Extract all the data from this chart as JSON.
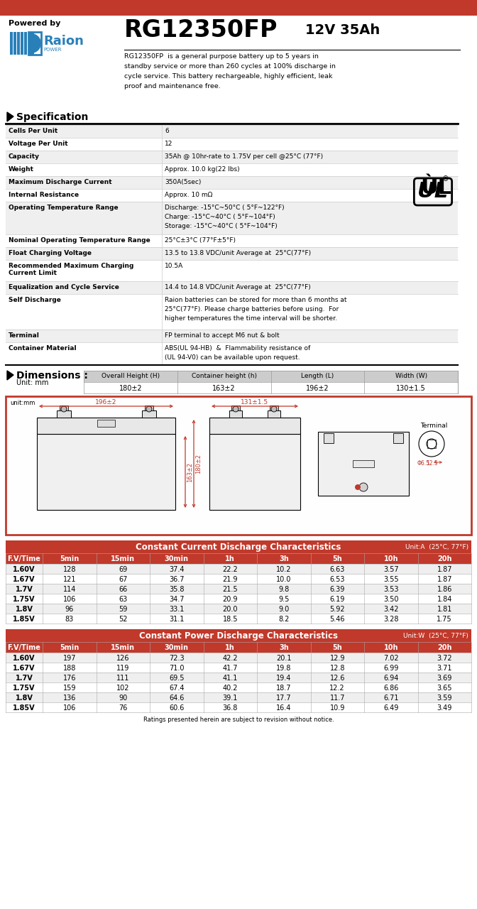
{
  "title_model": "RG12350FP",
  "title_spec": "12V 35Ah",
  "powered_by": "Powered by",
  "description": "RG12350FP  is a general purpose battery up to 5 years in\nstandby service or more than 260 cycles at 100% discharge in\ncycle service. This battery rechargeable, highly efficient, leak\nproof and maintenance free.",
  "section_spec": "Specification",
  "spec_rows": [
    [
      "Cells Per Unit",
      "6"
    ],
    [
      "Voltage Per Unit",
      "12"
    ],
    [
      "Capacity",
      "35Ah @ 10hr-rate to 1.75V per cell @25°C (77°F)"
    ],
    [
      "Weight",
      "Approx. 10.0 kg(22 lbs)"
    ],
    [
      "Maximum Discharge Current",
      "350A(5sec)"
    ],
    [
      "Internal Resistance",
      "Approx. 10 mΩ"
    ],
    [
      "Operating Temperature Range",
      "Discharge: -15°C~50°C ( 5°F~122°F)\nCharge: -15°C~40°C ( 5°F~104°F)\nStorage: -15°C~40°C ( 5°F~104°F)"
    ],
    [
      "Nominal Operating Temperature Range",
      "25°C±3°C (77°F±5°F)"
    ],
    [
      "Float Charging Voltage",
      "13.5 to 13.8 VDC/unit Average at  25°C(77°F)"
    ],
    [
      "Recommended Maximum Charging\nCurrent Limit",
      "10.5A"
    ],
    [
      "Equalization and Cycle Service",
      "14.4 to 14.8 VDC/unit Average at  25°C(77°F)"
    ],
    [
      "Self Discharge",
      "Raion batteries can be stored for more than 6 months at\n25°C(77°F). Please charge batteries before using.  For\nhigher temperatures the time interval will be shorter."
    ],
    [
      "Terminal",
      "FP terminal to accept M6 nut & bolt"
    ],
    [
      "Container Material",
      "ABS(UL 94-HB)  &  Flammability resistance of\n(UL 94-V0) can be available upon request."
    ]
  ],
  "spec_row_heights": [
    18,
    18,
    18,
    18,
    18,
    18,
    46,
    18,
    18,
    30,
    18,
    50,
    18,
    32
  ],
  "section_dim": "Dimensions :",
  "dim_unit": "Unit: mm",
  "dim_headers": [
    "Overall Height (H)",
    "Container height (h)",
    "Length (L)",
    "Width (W)"
  ],
  "dim_values": [
    "180±2",
    "163±2",
    "196±2",
    "130±1.5"
  ],
  "cc_title": "Constant Current Discharge Characteristics",
  "cc_unit": "Unit:A  (25°C, 77°F)",
  "cc_headers": [
    "F.V/Time",
    "5min",
    "15min",
    "30min",
    "1h",
    "3h",
    "5h",
    "10h",
    "20h"
  ],
  "cc_data": [
    [
      "1.60V",
      "128",
      "69",
      "37.4",
      "22.2",
      "10.2",
      "6.63",
      "3.57",
      "1.87"
    ],
    [
      "1.67V",
      "121",
      "67",
      "36.7",
      "21.9",
      "10.0",
      "6.53",
      "3.55",
      "1.87"
    ],
    [
      "1.7V",
      "114",
      "66",
      "35.8",
      "21.5",
      "9.8",
      "6.39",
      "3.53",
      "1.86"
    ],
    [
      "1.75V",
      "106",
      "63",
      "34.7",
      "20.9",
      "9.5",
      "6.19",
      "3.50",
      "1.84"
    ],
    [
      "1.8V",
      "96",
      "59",
      "33.1",
      "20.0",
      "9.0",
      "5.92",
      "3.42",
      "1.81"
    ],
    [
      "1.85V",
      "83",
      "52",
      "31.1",
      "18.5",
      "8.2",
      "5.46",
      "3.28",
      "1.75"
    ]
  ],
  "cp_title": "Constant Power Discharge Characteristics",
  "cp_unit": "Unit:W  (25°C, 77°F)",
  "cp_headers": [
    "F.V/Time",
    "5min",
    "15min",
    "30min",
    "1h",
    "3h",
    "5h",
    "10h",
    "20h"
  ],
  "cp_data": [
    [
      "1.60V",
      "197",
      "126",
      "72.3",
      "42.2",
      "20.1",
      "12.9",
      "7.02",
      "3.72"
    ],
    [
      "1.67V",
      "188",
      "119",
      "71.0",
      "41.7",
      "19.8",
      "12.8",
      "6.99",
      "3.71"
    ],
    [
      "1.7V",
      "176",
      "111",
      "69.5",
      "41.1",
      "19.4",
      "12.6",
      "6.94",
      "3.69"
    ],
    [
      "1.75V",
      "159",
      "102",
      "67.4",
      "40.2",
      "18.7",
      "12.2",
      "6.86",
      "3.65"
    ],
    [
      "1.8V",
      "136",
      "90",
      "64.6",
      "39.1",
      "17.7",
      "11.7",
      "6.71",
      "3.59"
    ],
    [
      "1.85V",
      "106",
      "76",
      "60.6",
      "36.8",
      "16.4",
      "10.9",
      "6.49",
      "3.49"
    ]
  ],
  "footer": "Ratings presented herein are subject to revision without notice.",
  "header_bg": "#c0392b",
  "table_header_bg": "#c0392b",
  "dim_header_bg": "#cccccc",
  "alt_row_bg": "#efefef",
  "red_color": "#c0392b",
  "bg_color": "#ffffff",
  "blue_color": "#2980b9"
}
